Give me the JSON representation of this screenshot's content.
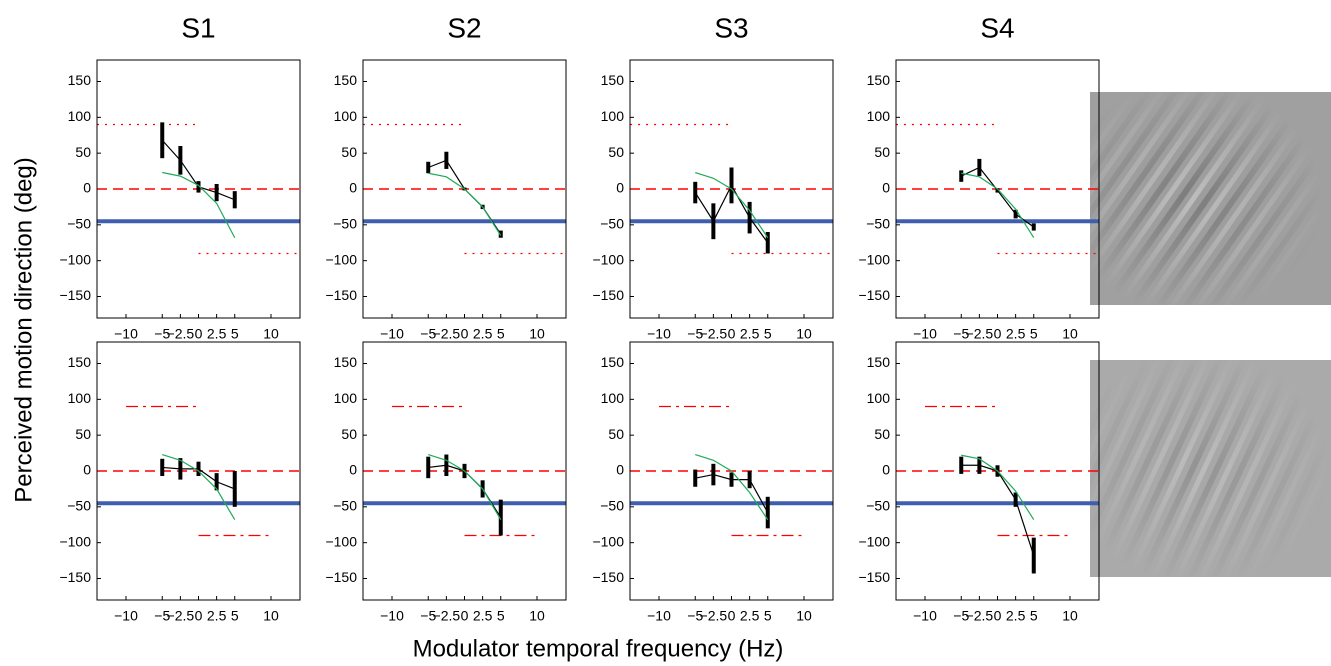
{
  "figure": {
    "ylabel": "Perceived motion direction (deg)",
    "xlabel": "Modulator temporal frequency (Hz)"
  },
  "chart_data": [
    {
      "type": "line",
      "title": "S1",
      "x": [
        -5,
        -2.5,
        0,
        2.5,
        5
      ],
      "xlim": [
        -14,
        14
      ],
      "ylim": [
        -180,
        180
      ],
      "xticks": [
        {
          "value": -10,
          "label": "−10"
        },
        {
          "value": -5,
          "label": "−5"
        },
        {
          "value": -2.5,
          "label": "−2.5"
        },
        0,
        2.5,
        5,
        10
      ],
      "yticks": [
        150,
        100,
        50,
        0,
        {
          "value": -50,
          "label": "−50"
        },
        {
          "value": -100,
          "label": "−100"
        },
        {
          "value": -150,
          "label": "−150"
        }
      ],
      "series": [
        {
          "color": "#000000",
          "values": [
            68,
            40,
            3,
            -5,
            -15
          ],
          "errors": [
            25,
            20,
            8,
            12,
            12
          ]
        },
        {
          "color": "#1faa5a",
          "values": [
            23,
            18,
            5,
            -20,
            -68
          ]
        }
      ],
      "reference_lines": [
        {
          "y": 0,
          "color": "#ff0000",
          "style": "dashed"
        },
        {
          "y": -45,
          "color": "#3f5fae",
          "style": "solid"
        }
      ],
      "segments": [
        {
          "x": [
            -14,
            0
          ],
          "y": 90,
          "color": "#ff0000",
          "style": "dotted"
        },
        {
          "x": [
            0,
            14
          ],
          "y": -90,
          "color": "#ff0000",
          "style": "dotted"
        }
      ]
    },
    {
      "type": "line",
      "title": "S2",
      "x": [
        -5,
        -2.5,
        0,
        2.5,
        5
      ],
      "xlim": [
        -14,
        14
      ],
      "ylim": [
        -180,
        180
      ],
      "xticks": [
        {
          "value": -10,
          "label": "−10"
        },
        {
          "value": -5,
          "label": "−5"
        },
        {
          "value": -2.5,
          "label": "−2.5"
        },
        0,
        2.5,
        5,
        10
      ],
      "yticks": [
        150,
        100,
        50,
        0,
        {
          "value": -50,
          "label": "−50"
        },
        {
          "value": -100,
          "label": "−100"
        },
        {
          "value": -150,
          "label": "−150"
        }
      ],
      "series": [
        {
          "color": "#000000",
          "values": [
            30,
            40,
            0,
            -25,
            -63
          ],
          "errors": [
            8,
            12,
            2,
            3,
            5
          ]
        },
        {
          "color": "#1faa5a",
          "values": [
            22,
            17,
            0,
            -25,
            -65
          ]
        }
      ],
      "reference_lines": [
        {
          "y": 0,
          "color": "#ff0000",
          "style": "dashed"
        },
        {
          "y": -45,
          "color": "#3f5fae",
          "style": "solid"
        }
      ],
      "segments": [
        {
          "x": [
            -14,
            0
          ],
          "y": 90,
          "color": "#ff0000",
          "style": "dotted"
        },
        {
          "x": [
            0,
            14
          ],
          "y": -90,
          "color": "#ff0000",
          "style": "dotted"
        }
      ]
    },
    {
      "type": "line",
      "title": "S3",
      "x": [
        -5,
        -2.5,
        0,
        2.5,
        5
      ],
      "xlim": [
        -14,
        14
      ],
      "ylim": [
        -180,
        180
      ],
      "xticks": [
        {
          "value": -10,
          "label": "−10"
        },
        {
          "value": -5,
          "label": "−5"
        },
        {
          "value": -2.5,
          "label": "−2.5"
        },
        0,
        2.5,
        5,
        10
      ],
      "yticks": [
        150,
        100,
        50,
        0,
        {
          "value": -50,
          "label": "−50"
        },
        {
          "value": -100,
          "label": "−100"
        },
        {
          "value": -150,
          "label": "−150"
        }
      ],
      "series": [
        {
          "color": "#000000",
          "values": [
            -5,
            -45,
            5,
            -40,
            -75
          ],
          "errors": [
            15,
            25,
            25,
            22,
            15
          ]
        },
        {
          "color": "#1faa5a",
          "values": [
            23,
            15,
            0,
            -30,
            -68
          ]
        }
      ],
      "reference_lines": [
        {
          "y": 0,
          "color": "#ff0000",
          "style": "dashed"
        },
        {
          "y": -45,
          "color": "#3f5fae",
          "style": "solid"
        }
      ],
      "segments": [
        {
          "x": [
            -14,
            0
          ],
          "y": 90,
          "color": "#ff0000",
          "style": "dotted"
        },
        {
          "x": [
            0,
            14
          ],
          "y": -90,
          "color": "#ff0000",
          "style": "dotted"
        }
      ]
    },
    {
      "type": "line",
      "title": "S4",
      "x": [
        -5,
        -2.5,
        0,
        2.5,
        5
      ],
      "xlim": [
        -14,
        14
      ],
      "ylim": [
        -180,
        180
      ],
      "xticks": [
        {
          "value": -10,
          "label": "−10"
        },
        {
          "value": -5,
          "label": "−5"
        },
        {
          "value": -2.5,
          "label": "−2.5"
        },
        0,
        2.5,
        5,
        10
      ],
      "yticks": [
        150,
        100,
        50,
        0,
        {
          "value": -50,
          "label": "−50"
        },
        {
          "value": -100,
          "label": "−100"
        },
        {
          "value": -150,
          "label": "−150"
        }
      ],
      "series": [
        {
          "color": "#000000",
          "values": [
            18,
            30,
            -2,
            -35,
            -53
          ],
          "errors": [
            8,
            12,
            3,
            6,
            5
          ]
        },
        {
          "color": "#1faa5a",
          "values": [
            22,
            17,
            0,
            -28,
            -68
          ]
        }
      ],
      "reference_lines": [
        {
          "y": 0,
          "color": "#ff0000",
          "style": "dashed"
        },
        {
          "y": -45,
          "color": "#3f5fae",
          "style": "solid"
        }
      ],
      "segments": [
        {
          "x": [
            -14,
            0
          ],
          "y": 90,
          "color": "#ff0000",
          "style": "dotted"
        },
        {
          "x": [
            0,
            14
          ],
          "y": -90,
          "color": "#ff0000",
          "style": "dotted"
        }
      ]
    },
    {
      "type": "line",
      "x": [
        -5,
        -2.5,
        0,
        2.5,
        5
      ],
      "xlim": [
        -14,
        14
      ],
      "ylim": [
        -180,
        180
      ],
      "xticks": [
        {
          "value": -10,
          "label": "−10"
        },
        {
          "value": -5,
          "label": "−5"
        },
        {
          "value": -2.5,
          "label": "−2.5"
        },
        0,
        2.5,
        5,
        10
      ],
      "yticks": [
        150,
        100,
        50,
        0,
        {
          "value": -50,
          "label": "−50"
        },
        {
          "value": -100,
          "label": "−100"
        },
        {
          "value": -150,
          "label": "−150"
        }
      ],
      "series": [
        {
          "color": "#000000",
          "values": [
            5,
            3,
            3,
            -15,
            -25
          ],
          "errors": [
            12,
            15,
            10,
            12,
            25
          ]
        },
        {
          "color": "#1faa5a",
          "values": [
            23,
            15,
            0,
            -25,
            -68
          ]
        }
      ],
      "reference_lines": [
        {
          "y": 0,
          "color": "#ff0000",
          "style": "dashed"
        },
        {
          "y": -45,
          "color": "#3f5fae",
          "style": "solid"
        }
      ],
      "segments": [
        {
          "x": [
            -10,
            0
          ],
          "y": 90,
          "color": "#ff0000",
          "style": "dashdot"
        },
        {
          "x": [
            0,
            10
          ],
          "y": -90,
          "color": "#ff0000",
          "style": "dashdot"
        }
      ]
    },
    {
      "type": "line",
      "x": [
        -5,
        -2.5,
        0,
        2.5,
        5
      ],
      "xlim": [
        -14,
        14
      ],
      "ylim": [
        -180,
        180
      ],
      "xticks": [
        {
          "value": -10,
          "label": "−10"
        },
        {
          "value": -5,
          "label": "−5"
        },
        {
          "value": -2.5,
          "label": "−2.5"
        },
        0,
        2.5,
        5,
        10
      ],
      "yticks": [
        150,
        100,
        50,
        0,
        {
          "value": -50,
          "label": "−50"
        },
        {
          "value": -100,
          "label": "−100"
        },
        {
          "value": -150,
          "label": "−150"
        }
      ],
      "series": [
        {
          "color": "#000000",
          "values": [
            5,
            8,
            0,
            -25,
            -65
          ],
          "errors": [
            15,
            15,
            10,
            12,
            25
          ]
        },
        {
          "color": "#1faa5a",
          "values": [
            23,
            15,
            0,
            -25,
            -68
          ]
        }
      ],
      "reference_lines": [
        {
          "y": 0,
          "color": "#ff0000",
          "style": "dashed"
        },
        {
          "y": -45,
          "color": "#3f5fae",
          "style": "solid"
        }
      ],
      "segments": [
        {
          "x": [
            -10,
            0
          ],
          "y": 90,
          "color": "#ff0000",
          "style": "dashdot"
        },
        {
          "x": [
            0,
            10
          ],
          "y": -90,
          "color": "#ff0000",
          "style": "dashdot"
        }
      ]
    },
    {
      "type": "line",
      "x": [
        -5,
        -2.5,
        0,
        2.5,
        5
      ],
      "xlim": [
        -14,
        14
      ],
      "ylim": [
        -180,
        180
      ],
      "xticks": [
        {
          "value": -10,
          "label": "−10"
        },
        {
          "value": -5,
          "label": "−5"
        },
        {
          "value": -2.5,
          "label": "−2.5"
        },
        0,
        2.5,
        5,
        10
      ],
      "yticks": [
        150,
        100,
        50,
        0,
        {
          "value": -50,
          "label": "−50"
        },
        {
          "value": -100,
          "label": "−100"
        },
        {
          "value": -150,
          "label": "−150"
        }
      ],
      "series": [
        {
          "color": "#000000",
          "values": [
            -10,
            -5,
            -12,
            -12,
            -58
          ],
          "errors": [
            12,
            15,
            10,
            12,
            22
          ]
        },
        {
          "color": "#1faa5a",
          "values": [
            23,
            15,
            0,
            -30,
            -68
          ]
        }
      ],
      "reference_lines": [
        {
          "y": 0,
          "color": "#ff0000",
          "style": "dashed"
        },
        {
          "y": -45,
          "color": "#3f5fae",
          "style": "solid"
        }
      ],
      "segments": [
        {
          "x": [
            -10,
            0
          ],
          "y": 90,
          "color": "#ff0000",
          "style": "dashdot"
        },
        {
          "x": [
            0,
            10
          ],
          "y": -90,
          "color": "#ff0000",
          "style": "dashdot"
        }
      ]
    },
    {
      "type": "line",
      "x": [
        -5,
        -2.5,
        0,
        2.5,
        5
      ],
      "xlim": [
        -14,
        14
      ],
      "ylim": [
        -180,
        180
      ],
      "xticks": [
        {
          "value": -10,
          "label": "−10"
        },
        {
          "value": -5,
          "label": "−5"
        },
        {
          "value": -2.5,
          "label": "−2.5"
        },
        0,
        2.5,
        5,
        10
      ],
      "yticks": [
        150,
        100,
        50,
        0,
        {
          "value": -50,
          "label": "−50"
        },
        {
          "value": -100,
          "label": "−100"
        },
        {
          "value": -150,
          "label": "−150"
        }
      ],
      "series": [
        {
          "color": "#000000",
          "values": [
            8,
            8,
            0,
            -40,
            -118
          ],
          "errors": [
            12,
            12,
            8,
            10,
            25
          ]
        },
        {
          "color": "#1faa5a",
          "values": [
            22,
            17,
            0,
            -28,
            -68
          ]
        }
      ],
      "reference_lines": [
        {
          "y": 0,
          "color": "#ff0000",
          "style": "dashed"
        },
        {
          "y": -45,
          "color": "#3f5fae",
          "style": "solid"
        }
      ],
      "segments": [
        {
          "x": [
            -10,
            0
          ],
          "y": 90,
          "color": "#ff0000",
          "style": "dashdot"
        },
        {
          "x": [
            0,
            10
          ],
          "y": -90,
          "color": "#ff0000",
          "style": "dashdot"
        }
      ]
    }
  ]
}
